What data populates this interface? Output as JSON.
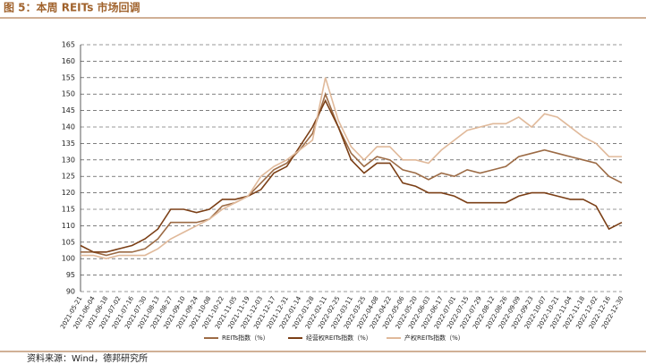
{
  "chart_data": {
    "type": "line",
    "title": "图 5：本周 REITs 市场回调",
    "source": "资料来源：Wind，德邦研究所",
    "categories": [
      "2021-05-21",
      "2021-06-04",
      "2021-06-18",
      "2021-07-02",
      "2021-07-16",
      "2021-07-30",
      "2021-08-13",
      "2021-08-27",
      "2021-09-10",
      "2021-09-24",
      "2021-10-08",
      "2021-10-22",
      "2021-11-05",
      "2021-11-19",
      "2021-12-03",
      "2021-12-17",
      "2021-12-31",
      "2022-01-14",
      "2022-01-28",
      "2022-02-11",
      "2022-02-25",
      "2022-03-11",
      "2022-03-25",
      "2022-04-08",
      "2022-04-22",
      "2022-05-06",
      "2022-05-20",
      "2022-06-03",
      "2022-06-17",
      "2022-07-01",
      "2022-07-15",
      "2022-07-29",
      "2022-08-12",
      "2022-08-26",
      "2022-09-09",
      "2022-09-23",
      "2022-10-07",
      "2022-10-21",
      "2022-11-04",
      "2022-11-18",
      "2022-12-02",
      "2022-12-16",
      "2022-12-30"
    ],
    "series": [
      {
        "name": "REITs指数（%）",
        "color": "#9c6b45",
        "values": [
          102,
          102,
          101,
          102,
          102,
          103,
          106,
          111,
          111,
          111,
          112,
          116,
          117,
          119,
          123,
          127,
          129,
          133,
          138,
          150,
          140,
          132,
          128,
          131,
          130,
          127,
          126,
          124,
          126,
          125,
          127,
          126,
          127,
          128,
          131,
          132,
          133,
          132,
          131,
          130,
          129,
          125,
          123
        ]
      },
      {
        "name": "经营权REITs指数（%）",
        "color": "#7b3f16",
        "values": [
          104,
          102,
          102,
          103,
          104,
          106,
          109,
          115,
          115,
          114,
          115,
          118,
          118,
          119,
          121,
          126,
          128,
          134,
          140,
          148,
          140,
          130,
          126,
          129,
          129,
          123,
          122,
          120,
          120,
          119,
          117,
          117,
          117,
          117,
          119,
          120,
          120,
          119,
          118,
          118,
          116,
          109,
          111
        ]
      },
      {
        "name": "产权REITs指数（%）",
        "color": "#e0b99a",
        "values": [
          101,
          101,
          100,
          101,
          101,
          101,
          103,
          106,
          108,
          110,
          112,
          115,
          117,
          119,
          125,
          128,
          130,
          133,
          136,
          155,
          142,
          134,
          130,
          134,
          134,
          130,
          130,
          129,
          133,
          136,
          139,
          140,
          141,
          141,
          143,
          140,
          144,
          143,
          140,
          137,
          135,
          131,
          131
        ]
      }
    ],
    "ylim": [
      90,
      165
    ],
    "yticks": [
      90,
      95,
      100,
      105,
      110,
      115,
      120,
      125,
      130,
      135,
      140,
      145,
      150,
      155,
      160,
      165
    ],
    "grid": true
  }
}
